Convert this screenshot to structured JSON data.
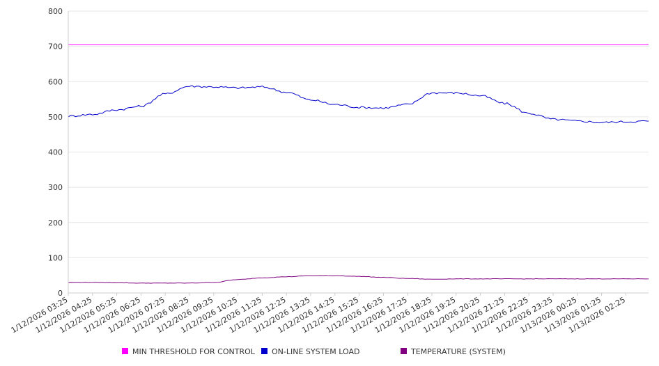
{
  "chart_data": {
    "type": "line",
    "title": "",
    "xlabel": "",
    "ylabel": "",
    "ylim": [
      0,
      800
    ],
    "y_ticks": [
      0,
      100,
      200,
      300,
      400,
      500,
      600,
      700,
      800
    ],
    "grid": true,
    "legend_position": "bottom",
    "x_tick_labels": [
      "1/12/2026 03:25",
      "1/12/2026 04:25",
      "1/12/2026 05:25",
      "1/12/2026 06:25",
      "1/12/2026 07:25",
      "1/12/2026 08:25",
      "1/12/2026 09:25",
      "1/12/2026 10:25",
      "1/12/2026 11:25",
      "1/12/2026 12:25",
      "1/12/2026 13:25",
      "1/12/2026 14:25",
      "1/12/2026 15:25",
      "1/12/2026 16:25",
      "1/12/2026 17:25",
      "1/12/2026 18:25",
      "1/12/2026 19:25",
      "1/12/2026 20:25",
      "1/12/2026 21:25",
      "1/12/2026 22:25",
      "1/12/2026 23:25",
      "1/13/2026 00:25",
      "1/13/2026 01:25",
      "1/13/2026 02:25"
    ],
    "x": [
      "1/12/2026 03:25",
      "1/12/2026 04:25",
      "1/12/2026 05:25",
      "1/12/2026 06:25",
      "1/12/2026 07:25",
      "1/12/2026 08:25",
      "1/12/2026 09:25",
      "1/12/2026 10:25",
      "1/12/2026 11:25",
      "1/12/2026 12:25",
      "1/12/2026 13:25",
      "1/12/2026 14:25",
      "1/12/2026 15:25",
      "1/12/2026 16:25",
      "1/12/2026 17:25",
      "1/12/2026 18:25",
      "1/12/2026 19:25",
      "1/12/2026 20:25",
      "1/12/2026 21:25",
      "1/12/2026 22:25",
      "1/12/2026 23:25",
      "1/13/2026 00:25",
      "1/13/2026 01:25",
      "1/13/2026 02:25",
      "1/13/2026 03:25"
    ],
    "series": [
      {
        "name": "MIN THRESHOLD FOR CONTROL",
        "color": "#ff00ff",
        "values": [
          705,
          705,
          705,
          705,
          705,
          705,
          705,
          705,
          705,
          705,
          705,
          705,
          705,
          705,
          705,
          705,
          705,
          705,
          705,
          705,
          705,
          705,
          705,
          705,
          705
        ]
      },
      {
        "name": "ON-LINE SYSTEM LOAD",
        "color": "#0000cc",
        "values": [
          502,
          507,
          520,
          530,
          565,
          587,
          585,
          582,
          585,
          570,
          548,
          535,
          527,
          525,
          535,
          568,
          568,
          560,
          538,
          510,
          493,
          488,
          484,
          486,
          488
        ]
      },
      {
        "name": "TEMPERATURE (SYSTEM)",
        "color": "#800080",
        "values": [
          30,
          30,
          29,
          28,
          28,
          28,
          30,
          38,
          43,
          46,
          49,
          49,
          47,
          44,
          41,
          39,
          40,
          40,
          40,
          40,
          40,
          40,
          40,
          40,
          40
        ]
      }
    ]
  }
}
